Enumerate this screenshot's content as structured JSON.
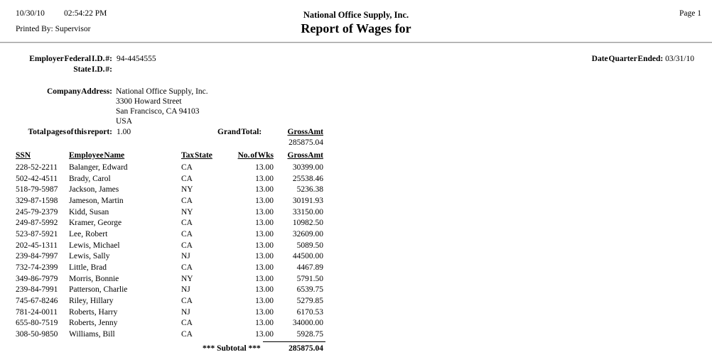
{
  "header": {
    "date": "10/30/10",
    "time": "02:54:22 PM",
    "printed_by": "Printed By: Supervisor",
    "company_name": "National Office Supply, Inc.",
    "report_title": "Report of Wages for",
    "page_label": "Page 1"
  },
  "ids": {
    "federal_id_label": "Employer Federal I.D. #:",
    "federal_id_value": "94-4454555",
    "state_id_label": "State I.D. #:",
    "state_id_value": "",
    "quarter_ended_label": "Date Quarter Ended:",
    "quarter_ended_value": "03/31/10"
  },
  "company": {
    "address_label": "Company Address:",
    "address_lines": {
      "0": "National Office Supply, Inc.",
      "1": "3300 Howard Street",
      "2": "San Francisco, CA 94103",
      "3": "USA"
    }
  },
  "summary": {
    "total_pages_label": "Total pages of this report:",
    "total_pages_value": "1.00",
    "grand_total_label": "Grand Total:",
    "grand_total_column_label": "Gross Amt",
    "grand_total_value": "285875.04"
  },
  "table": {
    "columns": {
      "ssn": "SSN",
      "name": "Employee Name",
      "state": "Tax State",
      "weeks": "No. of Wks",
      "gross": "Gross Amt"
    },
    "rows": [
      {
        "ssn": "228-52-2211",
        "name": "Balanger, Edward",
        "state": "CA",
        "weeks": "13.00",
        "gross": "30399.00"
      },
      {
        "ssn": "502-42-4511",
        "name": "Brady, Carol",
        "state": "CA",
        "weeks": "13.00",
        "gross": "25538.46"
      },
      {
        "ssn": "518-79-5987",
        "name": "Jackson, James",
        "state": "NY",
        "weeks": "13.00",
        "gross": "5236.38"
      },
      {
        "ssn": "329-87-1598",
        "name": "Jameson, Martin",
        "state": "CA",
        "weeks": "13.00",
        "gross": "30191.93"
      },
      {
        "ssn": "245-79-2379",
        "name": "Kidd, Susan",
        "state": "NY",
        "weeks": "13.00",
        "gross": "33150.00"
      },
      {
        "ssn": "249-87-5992",
        "name": "Kramer, George",
        "state": "CA",
        "weeks": "13.00",
        "gross": "10982.50"
      },
      {
        "ssn": "523-87-5921",
        "name": "Lee, Robert",
        "state": "CA",
        "weeks": "13.00",
        "gross": "32609.00"
      },
      {
        "ssn": "202-45-1311",
        "name": "Lewis, Michael",
        "state": "CA",
        "weeks": "13.00",
        "gross": "5089.50"
      },
      {
        "ssn": "239-84-7997",
        "name": "Lewis, Sally",
        "state": "NJ",
        "weeks": "13.00",
        "gross": "44500.00"
      },
      {
        "ssn": "732-74-2399",
        "name": "Little, Brad",
        "state": "CA",
        "weeks": "13.00",
        "gross": "4467.89"
      },
      {
        "ssn": "349-86-7979",
        "name": "Morris, Bonnie",
        "state": "NY",
        "weeks": "13.00",
        "gross": "5791.50"
      },
      {
        "ssn": "239-84-7991",
        "name": "Patterson, Charlie",
        "state": "NJ",
        "weeks": "13.00",
        "gross": "6539.75"
      },
      {
        "ssn": "745-67-8246",
        "name": "Riley, Hillary",
        "state": "CA",
        "weeks": "13.00",
        "gross": "5279.85"
      },
      {
        "ssn": "781-24-0011",
        "name": "Roberts, Harry",
        "state": "NJ",
        "weeks": "13.00",
        "gross": "6170.53"
      },
      {
        "ssn": "655-80-7519",
        "name": "Roberts, Jenny",
        "state": "CA",
        "weeks": "13.00",
        "gross": "34000.00"
      },
      {
        "ssn": "308-50-9850",
        "name": "Williams, Bill",
        "state": "CA",
        "weeks": "13.00",
        "gross": "5928.75"
      }
    ],
    "subtotal_label": "*** Subtotal ***",
    "subtotal_value": "285875.04"
  }
}
